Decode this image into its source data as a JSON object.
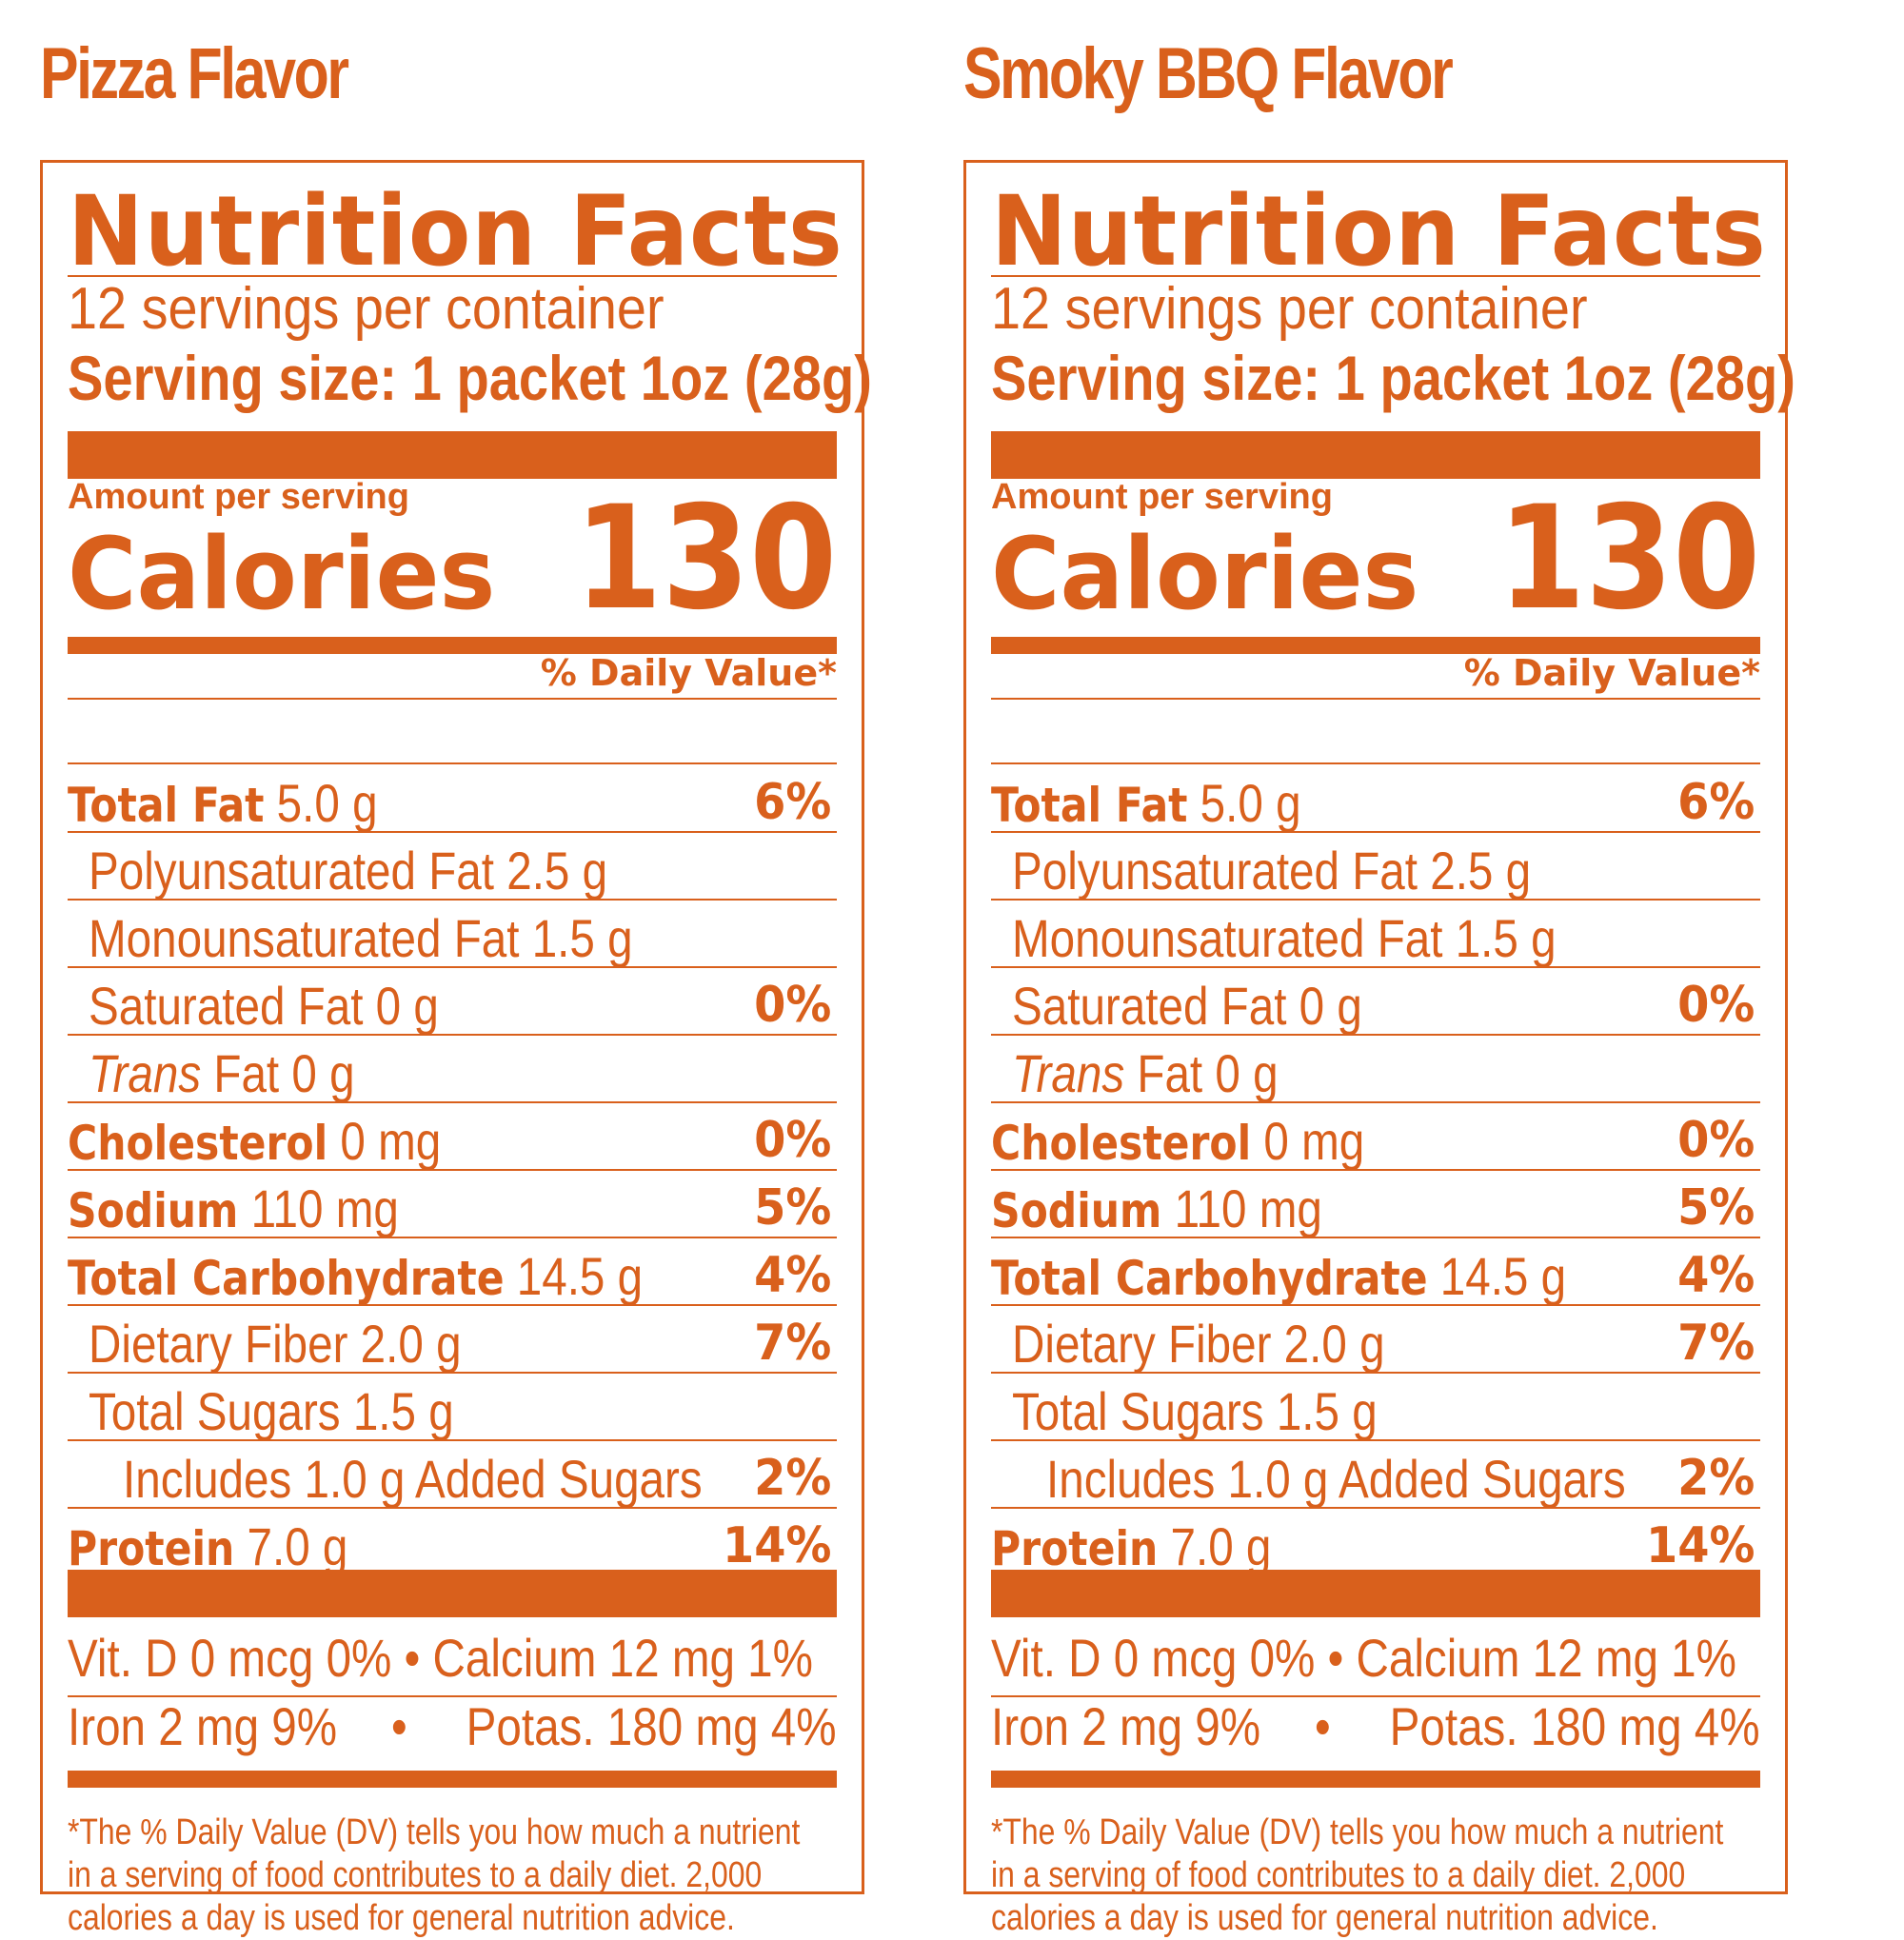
{
  "theme": {
    "accent": "#d9601c",
    "background": "#ffffff"
  },
  "labels": [
    {
      "flavor": "Pizza Flavor",
      "title": "Nutrition Facts",
      "servings": "12 servings per container",
      "serving_size": "Serving size: 1 packet 1oz (28g)",
      "amount_per_serving": "Amount per serving",
      "calories_label": "Calories",
      "calories_value": "130",
      "dv_header": "% Daily Value*",
      "nutrients": [
        {
          "name": "Total Fat",
          "amount": "5.0 g",
          "dv": "6%",
          "bold": true,
          "indent": 0,
          "italic": false
        },
        {
          "name": "Polyunsaturated Fat 2.5 g",
          "amount": "",
          "dv": "",
          "bold": false,
          "indent": 1,
          "italic": false
        },
        {
          "name": "Monounsaturated Fat 1.5 g",
          "amount": "",
          "dv": "",
          "bold": false,
          "indent": 1,
          "italic": false
        },
        {
          "name": "Saturated Fat 0 g",
          "amount": "",
          "dv": "0%",
          "bold": false,
          "indent": 1,
          "italic": false
        },
        {
          "name": "Trans",
          "amount": "Fat 0 g",
          "dv": "",
          "bold": false,
          "indent": 1,
          "italic": true
        },
        {
          "name": "Cholesterol",
          "amount": "0 mg",
          "dv": "0%",
          "bold": true,
          "indent": 0,
          "italic": false
        },
        {
          "name": "Sodium",
          "amount": "110 mg",
          "dv": "5%",
          "bold": true,
          "indent": 0,
          "italic": false
        },
        {
          "name": "Total Carbohydrate",
          "amount": "14.5 g",
          "dv": "4%",
          "bold": true,
          "indent": 0,
          "italic": false
        },
        {
          "name": "Dietary Fiber 2.0 g",
          "amount": "",
          "dv": "7%",
          "bold": false,
          "indent": 1,
          "italic": false
        },
        {
          "name": "Total Sugars 1.5 g",
          "amount": "",
          "dv": "",
          "bold": false,
          "indent": 1,
          "italic": false
        },
        {
          "name": "Includes 1.0 g Added Sugars",
          "amount": "",
          "dv": "2%",
          "bold": false,
          "indent": 2,
          "italic": false
        },
        {
          "name": "Protein",
          "amount": "7.0 g",
          "dv": "14%",
          "bold": true,
          "indent": 0,
          "italic": false
        }
      ],
      "vitamins_line1": "Vit. D 0 mcg 0% • Calcium 12 mg 1%",
      "vitamins_line2_left": "Iron 2 mg 9%",
      "vitamins_line2_sep": "•",
      "vitamins_line2_right": "Potas. 180 mg 4%",
      "footnote_1": "*The % Daily Value (DV) tells you how much a nutrient",
      "footnote_2": "in a serving of food contributes to a daily diet.  2,000",
      "footnote_3": "calories a day is used for general nutrition advice."
    },
    {
      "flavor": "Smoky BBQ Flavor",
      "title": "Nutrition Facts",
      "servings": "12 servings per container",
      "serving_size": "Serving size: 1 packet 1oz (28g)",
      "amount_per_serving": "Amount per serving",
      "calories_label": "Calories",
      "calories_value": "130",
      "dv_header": "% Daily Value*",
      "nutrients": [
        {
          "name": "Total Fat",
          "amount": "5.0 g",
          "dv": "6%",
          "bold": true,
          "indent": 0,
          "italic": false
        },
        {
          "name": "Polyunsaturated Fat 2.5 g",
          "amount": "",
          "dv": "",
          "bold": false,
          "indent": 1,
          "italic": false
        },
        {
          "name": "Monounsaturated Fat 1.5 g",
          "amount": "",
          "dv": "",
          "bold": false,
          "indent": 1,
          "italic": false
        },
        {
          "name": "Saturated Fat 0 g",
          "amount": "",
          "dv": "0%",
          "bold": false,
          "indent": 1,
          "italic": false
        },
        {
          "name": "Trans",
          "amount": "Fat 0 g",
          "dv": "",
          "bold": false,
          "indent": 1,
          "italic": true
        },
        {
          "name": "Cholesterol",
          "amount": "0 mg",
          "dv": "0%",
          "bold": true,
          "indent": 0,
          "italic": false
        },
        {
          "name": "Sodium",
          "amount": "110 mg",
          "dv": "5%",
          "bold": true,
          "indent": 0,
          "italic": false
        },
        {
          "name": "Total Carbohydrate",
          "amount": "14.5 g",
          "dv": "4%",
          "bold": true,
          "indent": 0,
          "italic": false
        },
        {
          "name": "Dietary Fiber 2.0 g",
          "amount": "",
          "dv": "7%",
          "bold": false,
          "indent": 1,
          "italic": false
        },
        {
          "name": "Total Sugars 1.5 g",
          "amount": "",
          "dv": "",
          "bold": false,
          "indent": 1,
          "italic": false
        },
        {
          "name": "Includes 1.0 g Added Sugars",
          "amount": "",
          "dv": "2%",
          "bold": false,
          "indent": 2,
          "italic": false
        },
        {
          "name": "Protein",
          "amount": "7.0 g",
          "dv": "14%",
          "bold": true,
          "indent": 0,
          "italic": false
        }
      ],
      "vitamins_line1": "Vit. D 0 mcg 0% • Calcium 12 mg 1%",
      "vitamins_line2_left": "Iron 2 mg 9%",
      "vitamins_line2_sep": "•",
      "vitamins_line2_right": "Potas. 180 mg 4%",
      "footnote_1": "*The % Daily Value (DV) tells you how much a nutrient",
      "footnote_2": "in a serving of food contributes to a daily diet.  2,000",
      "footnote_3": "calories a day is used for general nutrition advice."
    }
  ]
}
